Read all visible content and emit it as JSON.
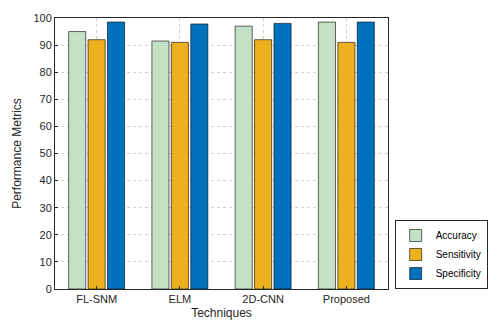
{
  "chart_data": {
    "type": "bar",
    "x_label": "Techniques",
    "y_label": "Performance Metrics",
    "categories": [
      "FL-SNM",
      "ELM",
      "2D-CNN",
      "Proposed"
    ],
    "series": [
      {
        "name": "Accuracy",
        "color": "#c4e1c6",
        "values": [
          95,
          91.5,
          97,
          98.5
        ]
      },
      {
        "name": "Sensitivity",
        "color": "#edb120",
        "values": [
          92,
          91,
          92,
          91
        ]
      },
      {
        "name": "Specificity",
        "color": "#0072bd",
        "values": [
          98.5,
          97.8,
          98,
          98.5
        ]
      }
    ],
    "ylim": [
      0,
      100
    ],
    "yticks": [
      0,
      10,
      20,
      30,
      40,
      50,
      60,
      70,
      80,
      90,
      100
    ],
    "grid": true,
    "legend": "lower right"
  }
}
